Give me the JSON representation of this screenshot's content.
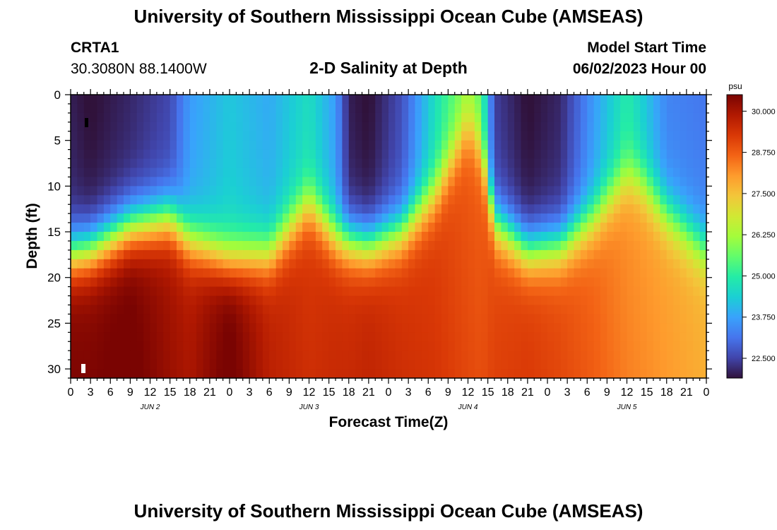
{
  "header": {
    "title": "University of Southern Mississippi Ocean Cube (AMSEAS)",
    "station": "CRTA1",
    "coords": "30.3080N  88.1400W",
    "subtitle": "2-D Salinity at Depth",
    "model_start_label": "Model Start Time",
    "model_start_value": "06/02/2023 Hour 00"
  },
  "footer": {
    "title": "University of Southern Mississippi Ocean Cube (AMSEAS)"
  },
  "colors": {
    "stops": [
      "#30123b",
      "#4145ab",
      "#4675ed",
      "#39a2fc",
      "#1bcfd4",
      "#24eca6",
      "#61fc6c",
      "#a4fc3b",
      "#d1e834",
      "#f3c63a",
      "#fe9b2d",
      "#f36315",
      "#d93806",
      "#b11901",
      "#7a0402"
    ]
  },
  "chart_data": {
    "type": "heatmap",
    "title": "2-D Salinity at Depth",
    "xlabel": "Forecast Time(Z)",
    "ylabel": "Depth (ft)",
    "x_range_hours": [
      0,
      96
    ],
    "y_range_ft": [
      0,
      31
    ],
    "x_tick_labels": [
      "0",
      "3",
      "6",
      "9",
      "12",
      "15",
      "18",
      "21",
      "0",
      "3",
      "6",
      "9",
      "12",
      "15",
      "18",
      "21",
      "0",
      "3",
      "6",
      "9",
      "12",
      "15",
      "18",
      "21",
      "0",
      "3",
      "6",
      "9",
      "12",
      "15",
      "18",
      "21",
      "0"
    ],
    "y_tick_values": [
      0,
      5,
      10,
      15,
      20,
      25,
      30
    ],
    "y_tick_labels": [
      "0",
      "5",
      "10",
      "15",
      "20",
      "25",
      "30"
    ],
    "day_labels": [
      {
        "hour": 12,
        "label": "JUN 2"
      },
      {
        "hour": 36,
        "label": "JUN 3"
      },
      {
        "hour": 60,
        "label": "JUN 4"
      },
      {
        "hour": 84,
        "label": "JUN 5"
      }
    ],
    "colorbar": {
      "unit": "psu",
      "min": 21.9,
      "max": 30.5,
      "ticks": [
        30.0,
        28.75,
        27.5,
        26.25,
        25.0,
        23.75,
        22.5
      ],
      "tick_labels": [
        "30.000",
        "28.750",
        "27.500",
        "26.250",
        "25.000",
        "23.750",
        "22.500"
      ]
    },
    "profile_knots": [
      {
        "hour": 0,
        "top": 22.2,
        "halocline_ft": 17.5,
        "bottom": 30.3
      },
      {
        "hour": 3,
        "top": 22.0,
        "halocline_ft": 17.0,
        "bottom": 30.3
      },
      {
        "hour": 9,
        "top": 22.3,
        "halocline_ft": 14.5,
        "bottom": 30.5
      },
      {
        "hour": 15,
        "top": 22.7,
        "halocline_ft": 13.5,
        "bottom": 30.0
      },
      {
        "hour": 18,
        "top": 23.8,
        "halocline_ft": 16.0,
        "bottom": 29.8
      },
      {
        "hour": 24,
        "top": 24.4,
        "halocline_ft": 18.0,
        "bottom": 30.5
      },
      {
        "hour": 30,
        "top": 24.0,
        "halocline_ft": 17.5,
        "bottom": 29.6
      },
      {
        "hour": 36,
        "top": 24.8,
        "halocline_ft": 12.0,
        "bottom": 29.3
      },
      {
        "hour": 40,
        "top": 23.8,
        "halocline_ft": 15.5,
        "bottom": 29.4
      },
      {
        "hour": 42,
        "top": 22.2,
        "halocline_ft": 16.0,
        "bottom": 29.4
      },
      {
        "hour": 45,
        "top": 22.0,
        "halocline_ft": 16.5,
        "bottom": 29.5
      },
      {
        "hour": 50,
        "top": 22.8,
        "halocline_ft": 15.0,
        "bottom": 29.3
      },
      {
        "hour": 55,
        "top": 24.8,
        "halocline_ft": 11.0,
        "bottom": 29.2
      },
      {
        "hour": 60,
        "top": 26.3,
        "halocline_ft": 3.5,
        "bottom": 28.9
      },
      {
        "hour": 62,
        "top": 25.6,
        "halocline_ft": 6.0,
        "bottom": 28.8
      },
      {
        "hour": 64,
        "top": 22.6,
        "halocline_ft": 14.0,
        "bottom": 29.0
      },
      {
        "hour": 69,
        "top": 22.0,
        "halocline_ft": 17.0,
        "bottom": 29.1
      },
      {
        "hour": 74,
        "top": 22.3,
        "halocline_ft": 16.5,
        "bottom": 28.9
      },
      {
        "hour": 79,
        "top": 23.8,
        "halocline_ft": 13.5,
        "bottom": 28.6
      },
      {
        "hour": 84,
        "top": 25.1,
        "halocline_ft": 9.0,
        "bottom": 28.2
      },
      {
        "hour": 86,
        "top": 24.6,
        "halocline_ft": 9.5,
        "bottom": 28.1
      },
      {
        "hour": 90,
        "top": 23.5,
        "halocline_ft": 13.0,
        "bottom": 27.9
      },
      {
        "hour": 96,
        "top": 23.3,
        "halocline_ft": 17.0,
        "bottom": 27.6
      }
    ]
  }
}
